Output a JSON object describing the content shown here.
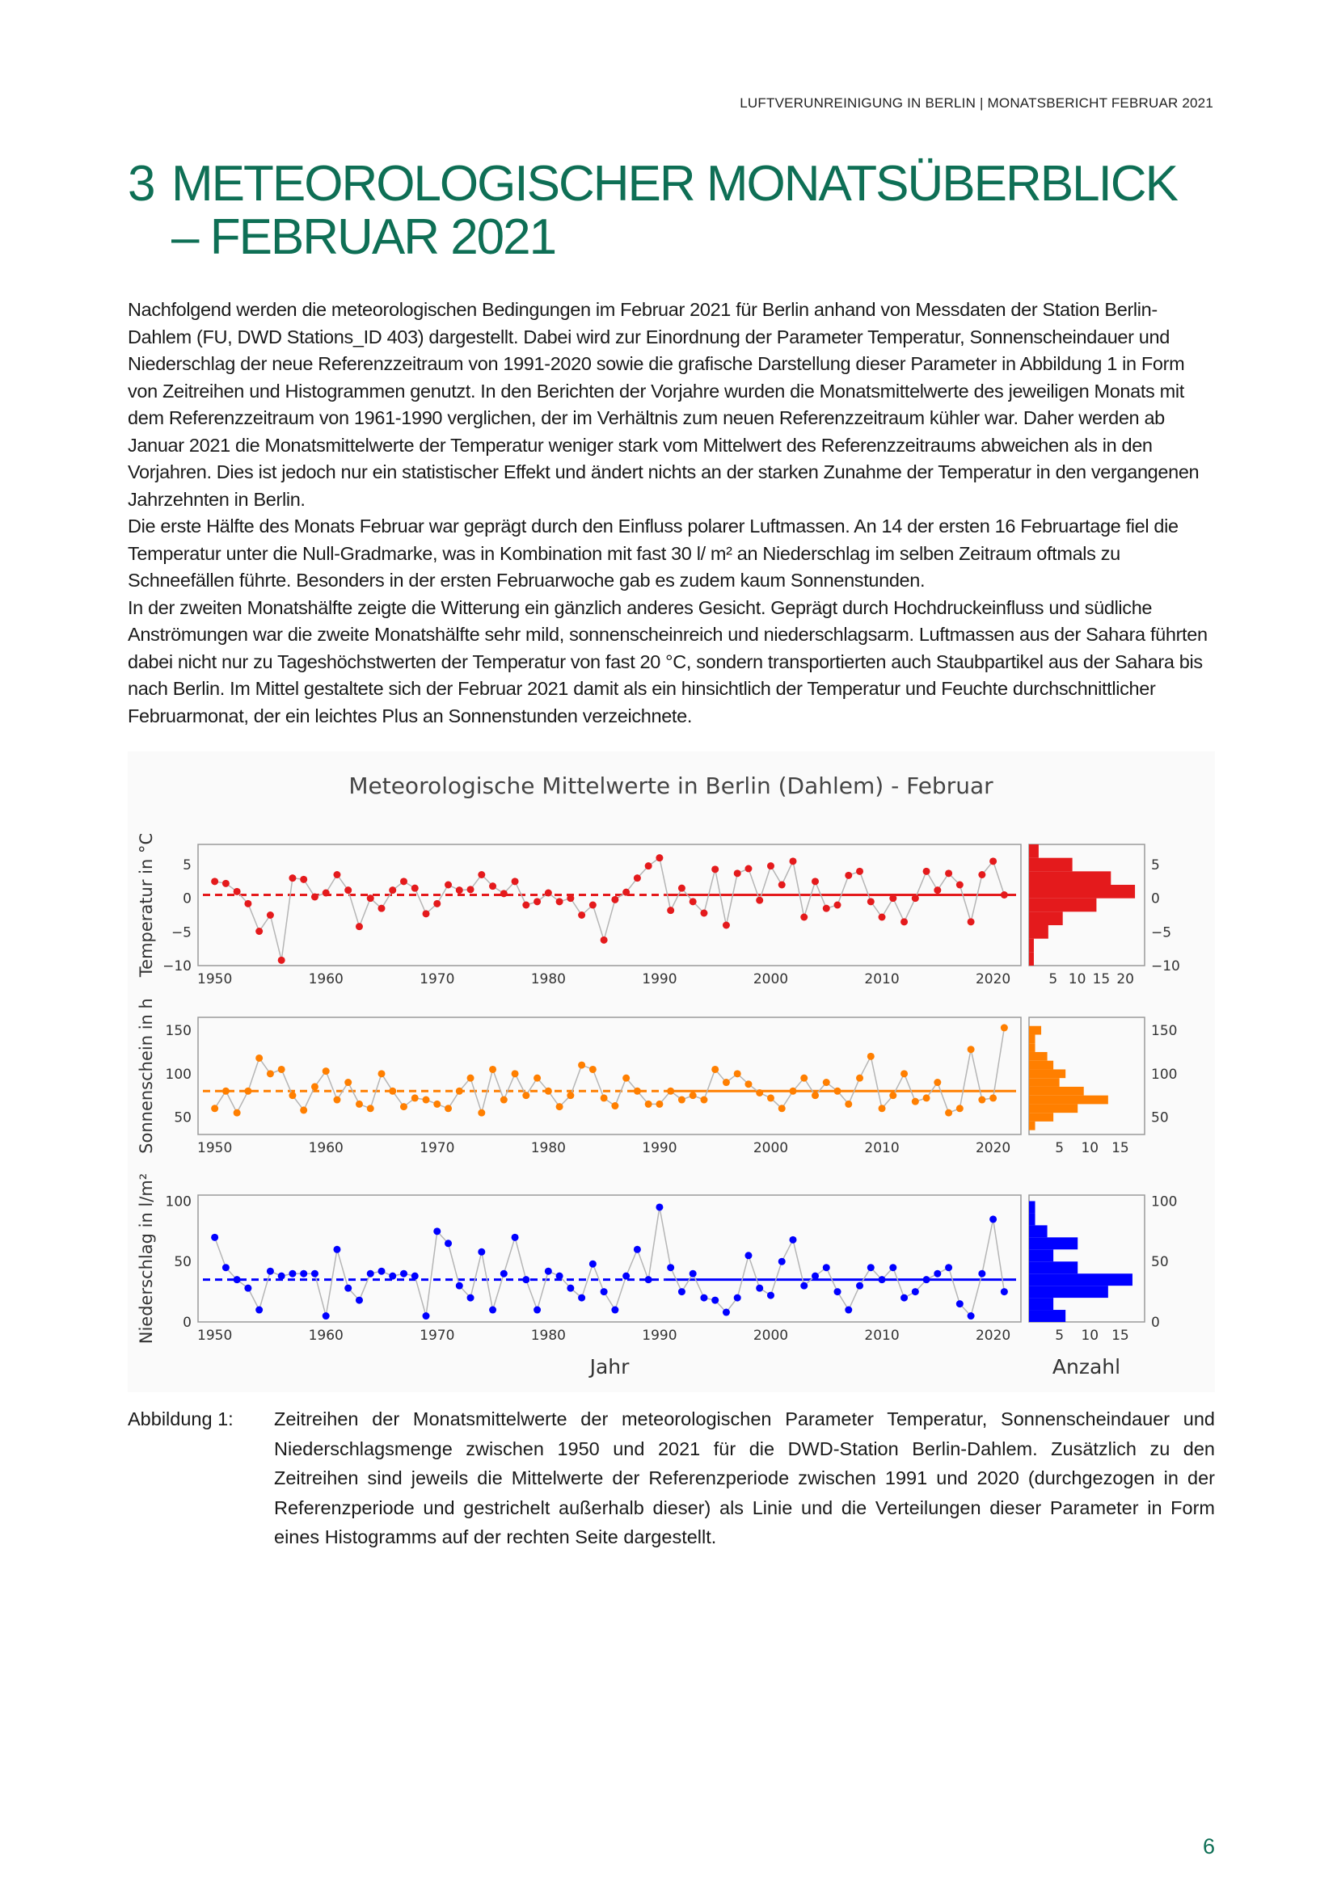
{
  "header": {
    "running_title": "LUFTVERUNREINIGUNG IN BERLIN | MONATSBERICHT FEBRUAR 2021"
  },
  "section": {
    "number": "3",
    "title_line1": "METEOROLOGISCHER MONATSÜBERBLICK",
    "title_line2": "– FEBRUAR 2021"
  },
  "body": {
    "paragraph_1": "Nachfolgend werden die meteorologischen Bedingungen im Februar 2021 für Berlin anhand von Messdaten der Station Berlin-Dahlem (FU, DWD Stations_ID 403) dargestellt. Dabei wird zur Einordnung der Parameter Temperatur, Sonnenscheindauer und Niederschlag der neue Referenzzeitraum von 1991-2020 sowie die grafische Darstellung dieser Parameter in Abbildung 1 in Form von Zeitreihen und Histogrammen genutzt. In den Berichten der Vorjahre wurden die Monatsmittelwerte des jeweiligen Monats mit dem Referenzzeitraum von 1961-1990 verglichen, der im Verhältnis zum neuen Referenzzeitraum kühler war. Daher werden ab Januar 2021 die Monatsmittelwerte der Temperatur weniger stark vom Mittelwert des Referenzzeitraums abweichen als in den Vorjahren. Dies ist jedoch nur ein statistischer Effekt und ändert nichts an der starken Zunahme der Temperatur in den vergangenen Jahrzehnten in Berlin.",
    "paragraph_2": "Die erste Hälfte des Monats Februar war geprägt durch den Einfluss polarer Luftmassen. An 14 der ersten 16 Februartage fiel die Temperatur unter die Null-Gradmarke, was in Kombination mit fast 30 l/ m² an Niederschlag im selben Zeitraum oftmals zu Schneefällen führte. Besonders in der ersten Februarwoche gab es zudem kaum Sonnenstunden.",
    "paragraph_3": "In der zweiten Monatshälfte zeigte die Witterung ein gänzlich anderes Gesicht. Geprägt durch Hochdruckeinfluss und südliche Anströmungen war die zweite Monatshälfte sehr mild, sonnenscheinreich und niederschlagsarm. Luftmassen aus der Sahara führten dabei nicht nur zu Tageshöchstwerten der Temperatur von fast 20 °C, sondern transportierten auch Staubpartikel aus der Sahara bis nach Berlin. Im Mittel gestaltete sich der Februar 2021 damit als ein hinsichtlich der Temperatur und Feuchte durchschnittlicher Februarmonat, der ein leichtes Plus an Sonnenstunden verzeichnete."
  },
  "figure": {
    "caption_label": "Abbildung 1:",
    "caption_text": "Zeitreihen der Monatsmittelwerte der meteorologischen Parameter Temperatur, Sonnenscheindauer und Niederschlagsmenge zwischen 1950 und 2021 für die DWD-Station Berlin-Dahlem. Zusätzlich zu den Zeitreihen sind jeweils die Mittelwerte der Referenzperiode zwischen 1991 und 2020 (durchgezogen in der Referenzperiode und gestrichelt außerhalb dieser) als Linie und die Verteilungen dieser Parameter in Form eines Histogramms auf der rechten Seite dargestellt."
  },
  "page_number": "6",
  "chart_data": [
    {
      "type": "line",
      "title": "Meteorologische Mittelwerte in Berlin (Dahlem) - Februar",
      "xlabel": "Jahr",
      "ylabel": "Temperatur in °C",
      "x_ticks": [
        1950,
        1960,
        1970,
        1980,
        1990,
        2000,
        2010,
        2020
      ],
      "y_ticks": [
        5,
        0,
        -5,
        -10
      ],
      "ylim": [
        -10,
        8
      ],
      "color": "#e41a1c",
      "reference_mean": 0.5,
      "reference_period": [
        1991,
        2020
      ],
      "x": [
        1950,
        1951,
        1952,
        1953,
        1954,
        1955,
        1956,
        1957,
        1958,
        1959,
        1960,
        1961,
        1962,
        1963,
        1964,
        1965,
        1966,
        1967,
        1968,
        1969,
        1970,
        1971,
        1972,
        1973,
        1974,
        1975,
        1976,
        1977,
        1978,
        1979,
        1980,
        1981,
        1982,
        1983,
        1984,
        1985,
        1986,
        1987,
        1988,
        1989,
        1990,
        1991,
        1992,
        1993,
        1994,
        1995,
        1996,
        1997,
        1998,
        1999,
        2000,
        2001,
        2002,
        2003,
        2004,
        2005,
        2006,
        2007,
        2008,
        2009,
        2010,
        2011,
        2012,
        2013,
        2014,
        2015,
        2016,
        2017,
        2018,
        2019,
        2020,
        2021
      ],
      "values": [
        2.5,
        2.2,
        1.0,
        -0.8,
        -4.9,
        -2.5,
        -9.2,
        3.0,
        2.8,
        0.2,
        0.8,
        3.5,
        1.2,
        -4.2,
        0.0,
        -1.5,
        1.2,
        2.5,
        1.5,
        -2.3,
        -0.8,
        2.0,
        1.2,
        1.3,
        3.5,
        1.8,
        0.7,
        2.5,
        -1.0,
        -0.5,
        0.8,
        -0.5,
        0.0,
        -2.5,
        -1.0,
        -6.2,
        -0.2,
        0.9,
        3.0,
        4.8,
        6.0,
        -1.8,
        1.5,
        -0.5,
        -2.2,
        4.3,
        -4.0,
        3.7,
        4.4,
        -0.3,
        4.8,
        2.0,
        5.5,
        -2.8,
        2.5,
        -1.5,
        -1.0,
        3.4,
        4.0,
        -0.5,
        -2.8,
        0.0,
        -3.5,
        0.0,
        4.0,
        1.2,
        3.7,
        2.0,
        -3.5,
        3.5,
        5.5,
        0.5
      ],
      "histogram": {
        "xlabel": "Anzahl",
        "x_ticks": [
          5,
          10,
          15,
          20
        ],
        "bins": [
          {
            "range": [
              -10,
              -8
            ],
            "count": 1
          },
          {
            "range": [
              -8,
              -6
            ],
            "count": 1
          },
          {
            "range": [
              -6,
              -4
            ],
            "count": 4
          },
          {
            "range": [
              -4,
              -2
            ],
            "count": 7
          },
          {
            "range": [
              -2,
              0
            ],
            "count": 14
          },
          {
            "range": [
              0,
              2
            ],
            "count": 22
          },
          {
            "range": [
              2,
              4
            ],
            "count": 17
          },
          {
            "range": [
              4,
              6
            ],
            "count": 9
          },
          {
            "range": [
              6,
              8
            ],
            "count": 2
          }
        ]
      }
    },
    {
      "type": "line",
      "xlabel": "Jahr",
      "ylabel": "Sonnenschein in h",
      "x_ticks": [
        1950,
        1960,
        1970,
        1980,
        1990,
        2000,
        2010,
        2020
      ],
      "y_ticks": [
        150,
        100,
        50
      ],
      "ylim": [
        30,
        165
      ],
      "color": "#ff7f00",
      "reference_mean": 80,
      "reference_period": [
        1991,
        2020
      ],
      "x": [
        1950,
        1951,
        1952,
        1953,
        1954,
        1955,
        1956,
        1957,
        1958,
        1959,
        1960,
        1961,
        1962,
        1963,
        1964,
        1965,
        1966,
        1967,
        1968,
        1969,
        1970,
        1971,
        1972,
        1973,
        1974,
        1975,
        1976,
        1977,
        1978,
        1979,
        1980,
        1981,
        1982,
        1983,
        1984,
        1985,
        1986,
        1987,
        1988,
        1989,
        1990,
        1991,
        1992,
        1993,
        1994,
        1995,
        1996,
        1997,
        1998,
        1999,
        2000,
        2001,
        2002,
        2003,
        2004,
        2005,
        2006,
        2007,
        2008,
        2009,
        2010,
        2011,
        2012,
        2013,
        2014,
        2015,
        2016,
        2017,
        2018,
        2019,
        2020,
        2021
      ],
      "values": [
        60,
        80,
        55,
        80,
        118,
        100,
        105,
        75,
        58,
        85,
        103,
        70,
        90,
        65,
        60,
        100,
        80,
        62,
        72,
        70,
        65,
        60,
        80,
        95,
        55,
        105,
        70,
        100,
        75,
        95,
        80,
        62,
        75,
        110,
        105,
        72,
        63,
        95,
        80,
        65,
        65,
        80,
        70,
        75,
        70,
        105,
        90,
        100,
        88,
        78,
        72,
        60,
        80,
        95,
        75,
        90,
        80,
        65,
        95,
        120,
        60,
        75,
        100,
        68,
        72,
        90,
        55,
        60,
        128,
        70,
        72,
        153
      ],
      "histogram": {
        "xlabel": "Anzahl",
        "x_ticks": [
          5,
          10,
          15
        ],
        "bins": [
          {
            "range": [
              35,
              45
            ],
            "count": 1
          },
          {
            "range": [
              45,
              55
            ],
            "count": 4
          },
          {
            "range": [
              55,
              65
            ],
            "count": 8
          },
          {
            "range": [
              65,
              75
            ],
            "count": 13
          },
          {
            "range": [
              75,
              85
            ],
            "count": 9
          },
          {
            "range": [
              85,
              95
            ],
            "count": 5
          },
          {
            "range": [
              95,
              105
            ],
            "count": 6
          },
          {
            "range": [
              105,
              115
            ],
            "count": 4
          },
          {
            "range": [
              115,
              125
            ],
            "count": 3
          },
          {
            "range": [
              125,
              135
            ],
            "count": 1
          },
          {
            "range": [
              135,
              145
            ],
            "count": 1
          },
          {
            "range": [
              145,
              155
            ],
            "count": 2
          }
        ]
      }
    },
    {
      "type": "line",
      "xlabel": "Jahr",
      "ylabel": "Niederschlag in l/m²",
      "x_ticks": [
        1950,
        1960,
        1970,
        1980,
        1990,
        2000,
        2010,
        2020
      ],
      "y_ticks": [
        100,
        50,
        0
      ],
      "ylim": [
        0,
        105
      ],
      "color": "#0000ff",
      "reference_mean": 35,
      "reference_period": [
        1991,
        2020
      ],
      "x": [
        1950,
        1951,
        1952,
        1953,
        1954,
        1955,
        1956,
        1957,
        1958,
        1959,
        1960,
        1961,
        1962,
        1963,
        1964,
        1965,
        1966,
        1967,
        1968,
        1969,
        1970,
        1971,
        1972,
        1973,
        1974,
        1975,
        1976,
        1977,
        1978,
        1979,
        1980,
        1981,
        1982,
        1983,
        1984,
        1985,
        1986,
        1987,
        1988,
        1989,
        1990,
        1991,
        1992,
        1993,
        1994,
        1995,
        1996,
        1997,
        1998,
        1999,
        2000,
        2001,
        2002,
        2003,
        2004,
        2005,
        2006,
        2007,
        2008,
        2009,
        2010,
        2011,
        2012,
        2013,
        2014,
        2015,
        2016,
        2017,
        2018,
        2019,
        2020,
        2021
      ],
      "values": [
        70,
        45,
        35,
        28,
        10,
        42,
        38,
        40,
        40,
        40,
        5,
        60,
        28,
        18,
        40,
        42,
        38,
        40,
        38,
        5,
        75,
        65,
        30,
        20,
        58,
        10,
        40,
        70,
        35,
        10,
        42,
        38,
        28,
        20,
        48,
        25,
        10,
        38,
        60,
        35,
        95,
        45,
        25,
        40,
        20,
        18,
        8,
        20,
        55,
        28,
        22,
        50,
        68,
        30,
        38,
        45,
        25,
        10,
        30,
        45,
        35,
        45,
        20,
        25,
        35,
        40,
        45,
        15,
        5,
        40,
        85,
        25
      ],
      "histogram": {
        "xlabel": "Anzahl",
        "x_ticks": [
          5,
          10,
          15
        ],
        "bins": [
          {
            "range": [
              0,
              10
            ],
            "count": 6
          },
          {
            "range": [
              10,
              20
            ],
            "count": 4
          },
          {
            "range": [
              20,
              30
            ],
            "count": 13
          },
          {
            "range": [
              30,
              40
            ],
            "count": 17
          },
          {
            "range": [
              40,
              50
            ],
            "count": 8
          },
          {
            "range": [
              50,
              60
            ],
            "count": 4
          },
          {
            "range": [
              60,
              70
            ],
            "count": 8
          },
          {
            "range": [
              70,
              80
            ],
            "count": 3
          },
          {
            "range": [
              80,
              90
            ],
            "count": 1
          },
          {
            "range": [
              90,
              100
            ],
            "count": 1
          }
        ]
      }
    }
  ]
}
